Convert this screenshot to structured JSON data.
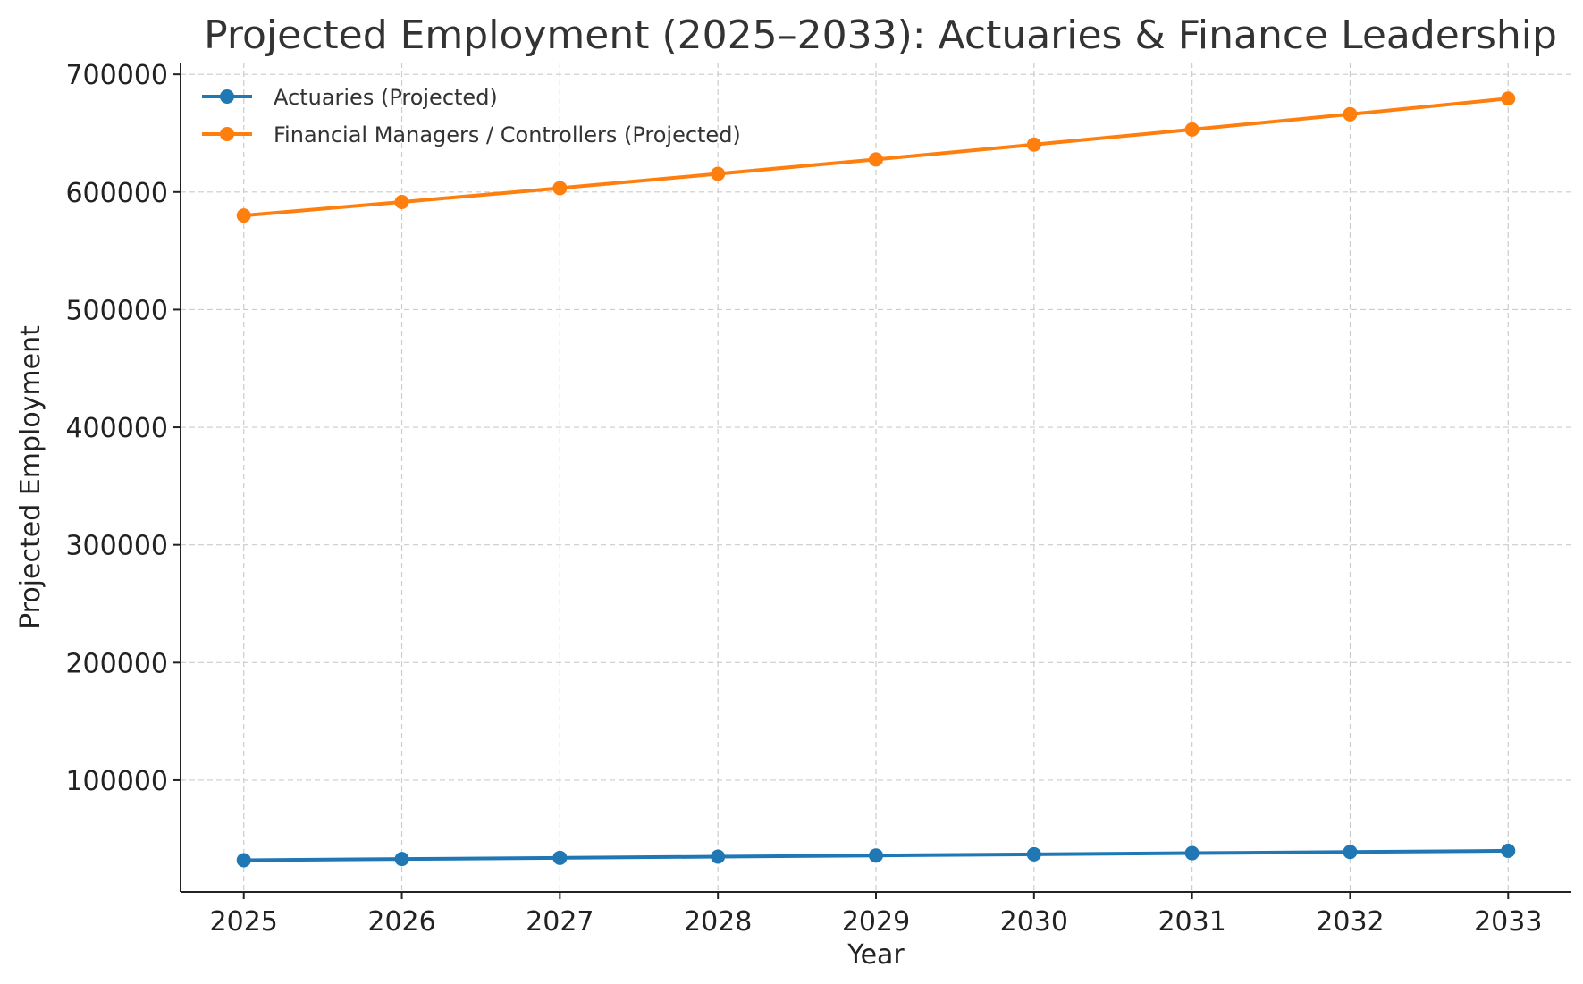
{
  "chart_data": {
    "type": "line",
    "title": "Projected Employment (2025–2033): Actuaries & Finance Leadership",
    "xlabel": "Year",
    "ylabel": "Projected Employment",
    "x": [
      2025,
      2026,
      2027,
      2028,
      2029,
      2030,
      2031,
      2032,
      2033
    ],
    "xlim": [
      2024.6,
      2033.4
    ],
    "ylim": [
      5000,
      710000
    ],
    "yticks": [
      100000,
      200000,
      300000,
      400000,
      500000,
      600000,
      700000
    ],
    "grid": true,
    "legend_position": "top-left",
    "series": [
      {
        "name": "Actuaries (Projected)",
        "color": "#1f77b4",
        "marker": "circle",
        "values": [
          32000,
          33000,
          34000,
          35000,
          36000,
          37000,
          38000,
          39000,
          40000
        ]
      },
      {
        "name": "Financial Managers / Controllers (Projected)",
        "color": "#ff7f0e",
        "marker": "circle",
        "values": [
          580000,
          591500,
          603300,
          615400,
          627700,
          640300,
          653100,
          666100,
          679400
        ]
      }
    ]
  }
}
